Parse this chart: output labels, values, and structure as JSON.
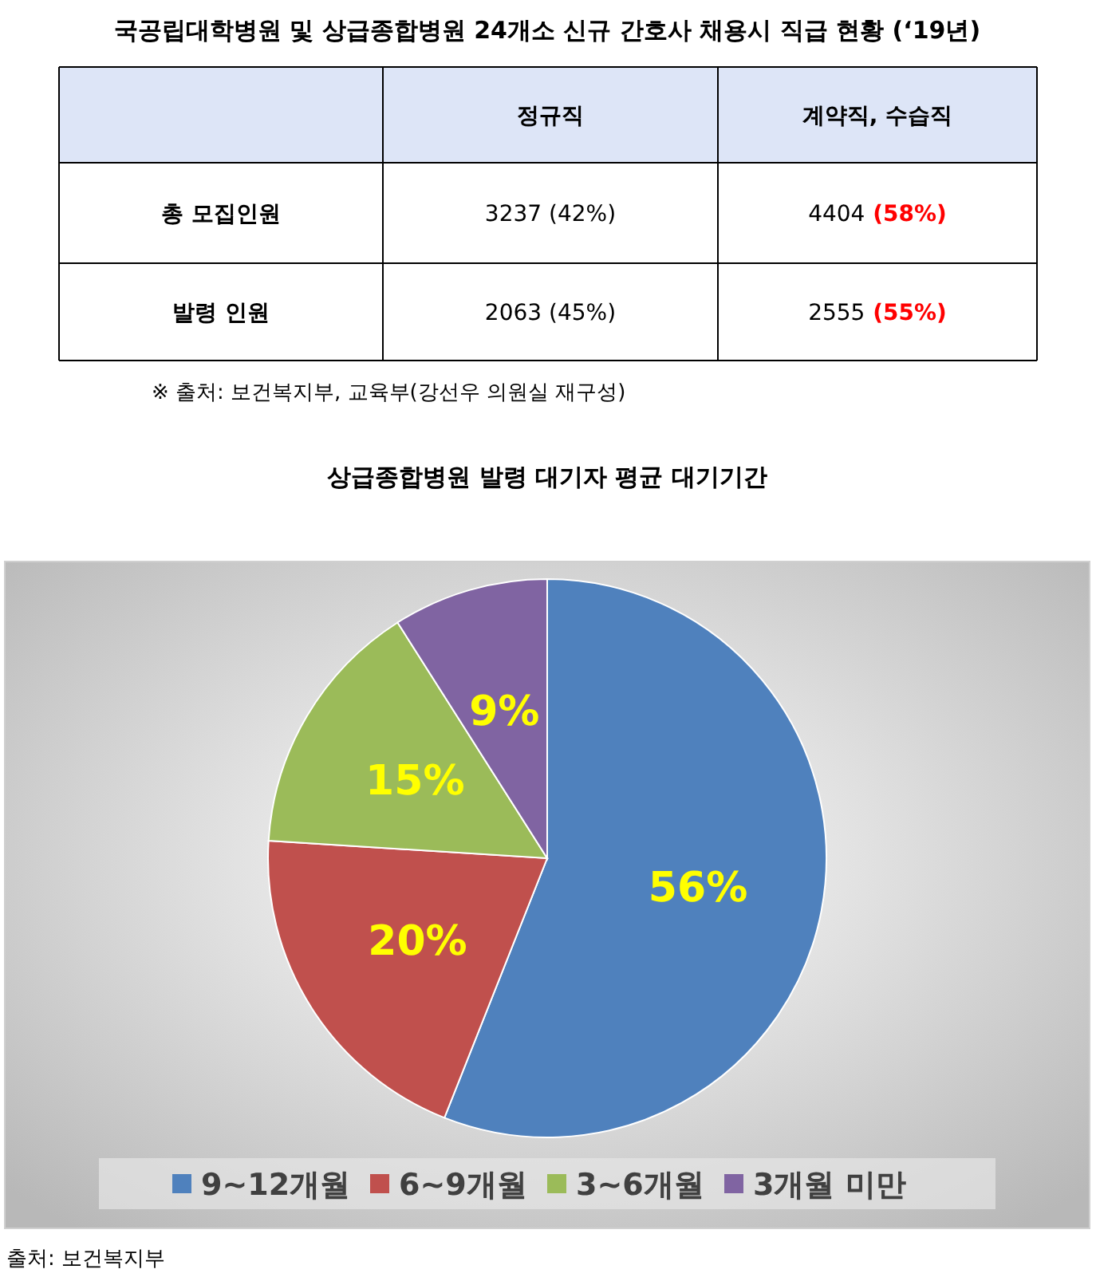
{
  "chart_data": [
    {
      "type": "other",
      "title": "국공립대학병원 및 상급종합병원 24개소 신규 간호사 채용시 직급 현황 (‘19년)",
      "categories": [
        "정규직",
        "계약직, 수습직"
      ],
      "y_categories": [
        "총 모집인원",
        "발령 인원"
      ],
      "cell_labels": [
        [
          "3237 (42%)",
          "4404 (58%)"
        ],
        [
          "2063 (45%)",
          "2555 (55%)"
        ]
      ],
      "annotations": [
        "※ 출처: 보건복지부, 교육부(강선우 의원실 재구성)"
      ]
    },
    {
      "type": "pie",
      "title": "상급종합병원 발령 대기자 평균 대기기간",
      "categories": [
        "9~12개월",
        "6~9개월",
        "3~6개월",
        "3개월 미만"
      ],
      "values": [
        56,
        20,
        15,
        9
      ],
      "colors": [
        "#4f81bd",
        "#c0504d",
        "#9bbb59",
        "#8064a2"
      ],
      "value_labels": [
        "56%",
        "20%",
        "15%",
        "9%"
      ],
      "legend": "bottom",
      "annotations": [
        "출처: 보건복지부"
      ]
    }
  ]
}
